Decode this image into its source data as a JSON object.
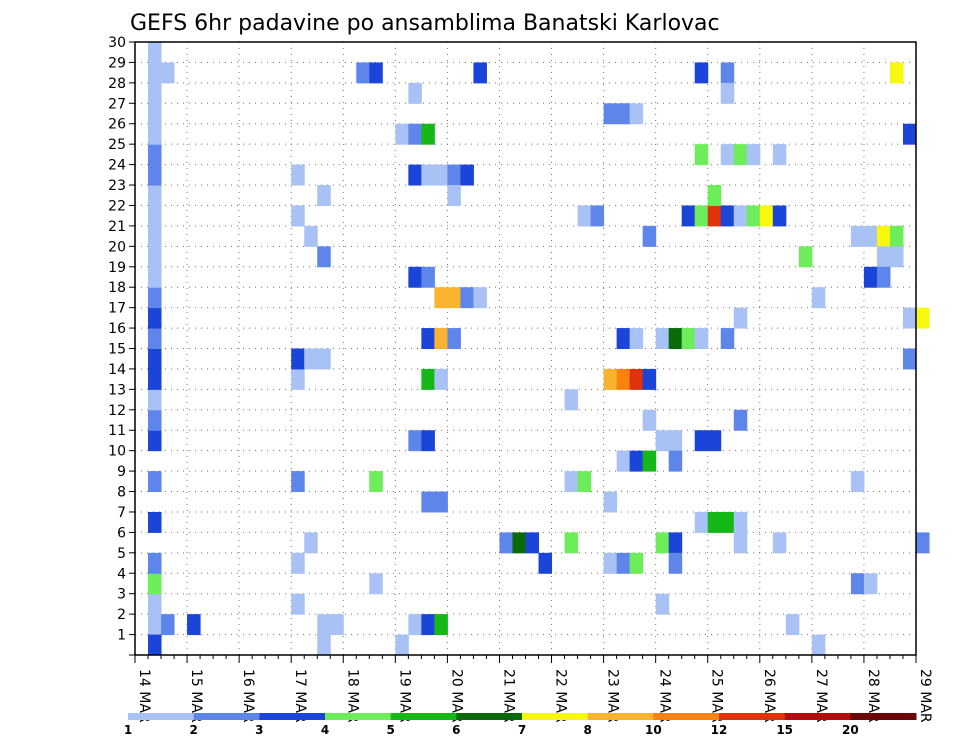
{
  "chart_data": {
    "type": "heatmap",
    "title": "GEFS 6hr padavine po ansamblima Banatski Karlovac",
    "xlabel": "",
    "ylabel": "",
    "x_tick_labels": [
      "14 MAR",
      "15 MAR",
      "16 MAR",
      "17 MAR",
      "18 MAR",
      "19 MAR",
      "20 MAR",
      "21 MAR",
      "22 MAR",
      "23 MAR",
      "24 MAR",
      "25 MAR",
      "26 MAR",
      "27 MAR",
      "28 MAR",
      "29 MAR"
    ],
    "y_tick_labels": [
      "1",
      "2",
      "3",
      "4",
      "5",
      "6",
      "7",
      "8",
      "9",
      "10",
      "11",
      "12",
      "13",
      "14",
      "15",
      "16",
      "17",
      "18",
      "19",
      "20",
      "21",
      "22",
      "23",
      "24",
      "25",
      "26",
      "27",
      "28",
      "29",
      "30"
    ],
    "x_range_days": [
      0,
      15
    ],
    "ylim": [
      0,
      30
    ],
    "grid": true,
    "legend_placement": "bottom",
    "color_scale": {
      "bounds": [
        "1",
        "2",
        "3",
        "4",
        "5",
        "6",
        "7",
        "8",
        "10",
        "12",
        "15",
        "20"
      ],
      "colors": [
        "#a9c2f5",
        "#5e86ea",
        "#1b45d8",
        "#6ded5a",
        "#16b817",
        "#0a6a0a",
        "#f8f80c",
        "#f9b42f",
        "#f98210",
        "#e0320e",
        "#b20e0e",
        "#6a0606"
      ]
    },
    "cells": [
      {
        "m": 1,
        "t": 0.25,
        "c": 1
      },
      {
        "m": 1,
        "t": 1.0,
        "c": 3
      },
      {
        "m": 1,
        "t": 0.5,
        "c": 2
      },
      {
        "m": 2,
        "t": 0.25,
        "c": 1
      },
      {
        "m": 3,
        "t": 0.25,
        "c": 4
      },
      {
        "m": 3,
        "t": 4.5,
        "c": 1
      },
      {
        "m": 4,
        "t": 0.25,
        "c": 2
      },
      {
        "m": 4,
        "t": 3.0,
        "c": 1
      },
      {
        "m": 5,
        "t": 3.25,
        "c": 1
      },
      {
        "m": 1,
        "t": 3.5,
        "c": 1
      },
      {
        "m": 2,
        "t": 3.0,
        "c": 1
      },
      {
        "m": 1,
        "t": 3.75,
        "c": 1
      },
      {
        "m": 6,
        "t": 0.25,
        "c": 3
      },
      {
        "m": 8,
        "t": 0.25,
        "c": 2
      },
      {
        "m": 8,
        "t": 3.0,
        "c": 2
      },
      {
        "m": 8,
        "t": 4.5,
        "c": 4
      },
      {
        "m": 10,
        "t": 0.25,
        "c": 3
      },
      {
        "m": 11,
        "t": 0.25,
        "c": 2
      },
      {
        "m": 12,
        "t": 0.25,
        "c": 1
      },
      {
        "m": 13,
        "t": 0.25,
        "c": 3
      },
      {
        "m": 13,
        "t": 3.0,
        "c": 1
      },
      {
        "m": 14,
        "t": 0.25,
        "c": 3
      },
      {
        "m": 14,
        "t": 3.0,
        "c": 3
      },
      {
        "m": 14,
        "t": 3.25,
        "c": 1
      },
      {
        "m": 14,
        "t": 3.5,
        "c": 1
      },
      {
        "m": 15,
        "t": 0.25,
        "c": 2
      },
      {
        "m": 16,
        "t": 0.25,
        "c": 3
      },
      {
        "m": 17,
        "t": 0.25,
        "c": 2
      },
      {
        "m": 18,
        "t": 0.25,
        "c": 1
      },
      {
        "m": 19,
        "t": 0.25,
        "c": 1
      },
      {
        "m": 20,
        "t": 0.25,
        "c": 1
      },
      {
        "m": 19,
        "t": 3.5,
        "c": 2
      },
      {
        "m": 20,
        "t": 3.25,
        "c": 1
      },
      {
        "m": 21,
        "t": 0.25,
        "c": 1
      },
      {
        "m": 21,
        "t": 3.0,
        "c": 1
      },
      {
        "m": 22,
        "t": 0.25,
        "c": 1
      },
      {
        "m": 22,
        "t": 3.5,
        "c": 1
      },
      {
        "m": 23,
        "t": 0.25,
        "c": 2
      },
      {
        "m": 23,
        "t": 3.0,
        "c": 1
      },
      {
        "m": 24,
        "t": 0.25,
        "c": 2
      },
      {
        "m": 25,
        "t": 0.25,
        "c": 1
      },
      {
        "m": 26,
        "t": 0.25,
        "c": 1
      },
      {
        "m": 27,
        "t": 0.25,
        "c": 1
      },
      {
        "m": 28,
        "t": 0.25,
        "c": 1
      },
      {
        "m": 28,
        "t": 0.5,
        "c": 1
      },
      {
        "m": 29,
        "t": 0.25,
        "c": 1
      },
      {
        "m": 0,
        "t": 0.25,
        "c": 3
      },
      {
        "m": 0,
        "t": 3.5,
        "c": 1
      },
      {
        "m": 0,
        "t": 5.0,
        "c": 1
      },
      {
        "m": 28,
        "t": 4.25,
        "c": 2
      },
      {
        "m": 28,
        "t": 4.5,
        "c": 3
      },
      {
        "m": 28,
        "t": 6.5,
        "c": 3
      },
      {
        "m": 28,
        "t": 10.75,
        "c": 3
      },
      {
        "m": 28,
        "t": 11.25,
        "c": 2
      },
      {
        "m": 28,
        "t": 14.5,
        "c": 7
      },
      {
        "m": 27,
        "t": 5.25,
        "c": 1
      },
      {
        "m": 27,
        "t": 11.25,
        "c": 1
      },
      {
        "m": 26,
        "t": 9.0,
        "c": 2
      },
      {
        "m": 26,
        "t": 9.25,
        "c": 2
      },
      {
        "m": 26,
        "t": 9.5,
        "c": 1
      },
      {
        "m": 25,
        "t": 5.0,
        "c": 1
      },
      {
        "m": 25,
        "t": 5.25,
        "c": 2
      },
      {
        "m": 25,
        "t": 5.5,
        "c": 5
      },
      {
        "m": 25,
        "t": 14.75,
        "c": 3
      },
      {
        "m": 24,
        "t": 10.75,
        "c": 4
      },
      {
        "m": 24,
        "t": 11.25,
        "c": 1
      },
      {
        "m": 24,
        "t": 11.5,
        "c": 4
      },
      {
        "m": 24,
        "t": 11.75,
        "c": 1
      },
      {
        "m": 24,
        "t": 12.25,
        "c": 1
      },
      {
        "m": 23,
        "t": 5.25,
        "c": 3
      },
      {
        "m": 23,
        "t": 5.5,
        "c": 1
      },
      {
        "m": 23,
        "t": 5.75,
        "c": 1
      },
      {
        "m": 23,
        "t": 6.0,
        "c": 2
      },
      {
        "m": 23,
        "t": 6.25,
        "c": 3
      },
      {
        "m": 22,
        "t": 6.0,
        "c": 1
      },
      {
        "m": 21,
        "t": 8.5,
        "c": 1
      },
      {
        "m": 21,
        "t": 8.75,
        "c": 2
      },
      {
        "m": 21,
        "t": 10.5,
        "c": 3
      },
      {
        "m": 21,
        "t": 10.75,
        "c": 4
      },
      {
        "m": 21,
        "t": 11.0,
        "c": 10
      },
      {
        "m": 21,
        "t": 11.25,
        "c": 3
      },
      {
        "m": 21,
        "t": 11.5,
        "c": 1
      },
      {
        "m": 21,
        "t": 11.75,
        "c": 4
      },
      {
        "m": 21,
        "t": 12.0,
        "c": 7
      },
      {
        "m": 21,
        "t": 12.25,
        "c": 3
      },
      {
        "m": 22,
        "t": 11.0,
        "c": 4
      },
      {
        "m": 20,
        "t": 9.75,
        "c": 2
      },
      {
        "m": 20,
        "t": 13.75,
        "c": 1
      },
      {
        "m": 20,
        "t": 14.0,
        "c": 1
      },
      {
        "m": 20,
        "t": 14.25,
        "c": 7
      },
      {
        "m": 20,
        "t": 14.5,
        "c": 4
      },
      {
        "m": 19,
        "t": 12.75,
        "c": 4
      },
      {
        "m": 19,
        "t": 14.25,
        "c": 1
      },
      {
        "m": 19,
        "t": 14.5,
        "c": 1
      },
      {
        "m": 18,
        "t": 5.25,
        "c": 3
      },
      {
        "m": 18,
        "t": 5.5,
        "c": 2
      },
      {
        "m": 18,
        "t": 14.0,
        "c": 3
      },
      {
        "m": 18,
        "t": 14.25,
        "c": 2
      },
      {
        "m": 17,
        "t": 5.75,
        "c": 8
      },
      {
        "m": 17,
        "t": 6.0,
        "c": 8
      },
      {
        "m": 17,
        "t": 6.25,
        "c": 2
      },
      {
        "m": 17,
        "t": 6.5,
        "c": 1
      },
      {
        "m": 17,
        "t": 13.0,
        "c": 1
      },
      {
        "m": 16,
        "t": 11.5,
        "c": 1
      },
      {
        "m": 16,
        "t": 14.75,
        "c": 1
      },
      {
        "m": 16,
        "t": 15.0,
        "c": 7
      },
      {
        "m": 15,
        "t": 5.5,
        "c": 3
      },
      {
        "m": 15,
        "t": 5.75,
        "c": 8
      },
      {
        "m": 15,
        "t": 6.0,
        "c": 2
      },
      {
        "m": 15,
        "t": 9.25,
        "c": 3
      },
      {
        "m": 15,
        "t": 9.5,
        "c": 1
      },
      {
        "m": 15,
        "t": 10.0,
        "c": 1
      },
      {
        "m": 15,
        "t": 10.25,
        "c": 6
      },
      {
        "m": 15,
        "t": 10.5,
        "c": 4
      },
      {
        "m": 15,
        "t": 10.75,
        "c": 1
      },
      {
        "m": 15,
        "t": 11.25,
        "c": 2
      },
      {
        "m": 14,
        "t": 14.75,
        "c": 2
      },
      {
        "m": 13,
        "t": 5.5,
        "c": 5
      },
      {
        "m": 13,
        "t": 5.75,
        "c": 1
      },
      {
        "m": 13,
        "t": 9.0,
        "c": 8
      },
      {
        "m": 13,
        "t": 9.25,
        "c": 9
      },
      {
        "m": 13,
        "t": 9.5,
        "c": 10
      },
      {
        "m": 13,
        "t": 9.75,
        "c": 3
      },
      {
        "m": 12,
        "t": 8.25,
        "c": 1
      },
      {
        "m": 11,
        "t": 9.75,
        "c": 1
      },
      {
        "m": 11,
        "t": 11.5,
        "c": 2
      },
      {
        "m": 10,
        "t": 5.25,
        "c": 2
      },
      {
        "m": 10,
        "t": 5.5,
        "c": 3
      },
      {
        "m": 10,
        "t": 10.0,
        "c": 1
      },
      {
        "m": 10,
        "t": 10.25,
        "c": 1
      },
      {
        "m": 10,
        "t": 10.75,
        "c": 3
      },
      {
        "m": 10,
        "t": 11.0,
        "c": 3
      },
      {
        "m": 9,
        "t": 9.25,
        "c": 1
      },
      {
        "m": 9,
        "t": 9.5,
        "c": 3
      },
      {
        "m": 9,
        "t": 9.75,
        "c": 5
      },
      {
        "m": 9,
        "t": 10.25,
        "c": 2
      },
      {
        "m": 8,
        "t": 8.25,
        "c": 1
      },
      {
        "m": 8,
        "t": 8.5,
        "c": 4
      },
      {
        "m": 8,
        "t": 13.75,
        "c": 1
      },
      {
        "m": 7,
        "t": 5.5,
        "c": 2
      },
      {
        "m": 7,
        "t": 5.75,
        "c": 2
      },
      {
        "m": 7,
        "t": 9.0,
        "c": 1
      },
      {
        "m": 6,
        "t": 10.75,
        "c": 1
      },
      {
        "m": 6,
        "t": 11.0,
        "c": 5
      },
      {
        "m": 6,
        "t": 11.25,
        "c": 5
      },
      {
        "m": 6,
        "t": 11.5,
        "c": 1
      },
      {
        "m": 5,
        "t": 7.0,
        "c": 2
      },
      {
        "m": 5,
        "t": 7.25,
        "c": 6
      },
      {
        "m": 5,
        "t": 7.5,
        "c": 3
      },
      {
        "m": 5,
        "t": 8.25,
        "c": 4
      },
      {
        "m": 5,
        "t": 10.0,
        "c": 4
      },
      {
        "m": 5,
        "t": 10.25,
        "c": 3
      },
      {
        "m": 5,
        "t": 11.5,
        "c": 1
      },
      {
        "m": 5,
        "t": 12.25,
        "c": 1
      },
      {
        "m": 5,
        "t": 15.0,
        "c": 2
      },
      {
        "m": 4,
        "t": 7.75,
        "c": 3
      },
      {
        "m": 4,
        "t": 9.0,
        "c": 1
      },
      {
        "m": 4,
        "t": 9.25,
        "c": 2
      },
      {
        "m": 4,
        "t": 9.5,
        "c": 4
      },
      {
        "m": 4,
        "t": 10.25,
        "c": 2
      },
      {
        "m": 3,
        "t": 13.75,
        "c": 2
      },
      {
        "m": 3,
        "t": 14.0,
        "c": 1
      },
      {
        "m": 2,
        "t": 10.0,
        "c": 1
      },
      {
        "m": 1,
        "t": 5.25,
        "c": 1
      },
      {
        "m": 1,
        "t": 5.5,
        "c": 3
      },
      {
        "m": 1,
        "t": 5.75,
        "c": 5
      },
      {
        "m": 1,
        "t": 12.5,
        "c": 1
      },
      {
        "m": 0,
        "t": 13.0,
        "c": 1
      }
    ]
  }
}
